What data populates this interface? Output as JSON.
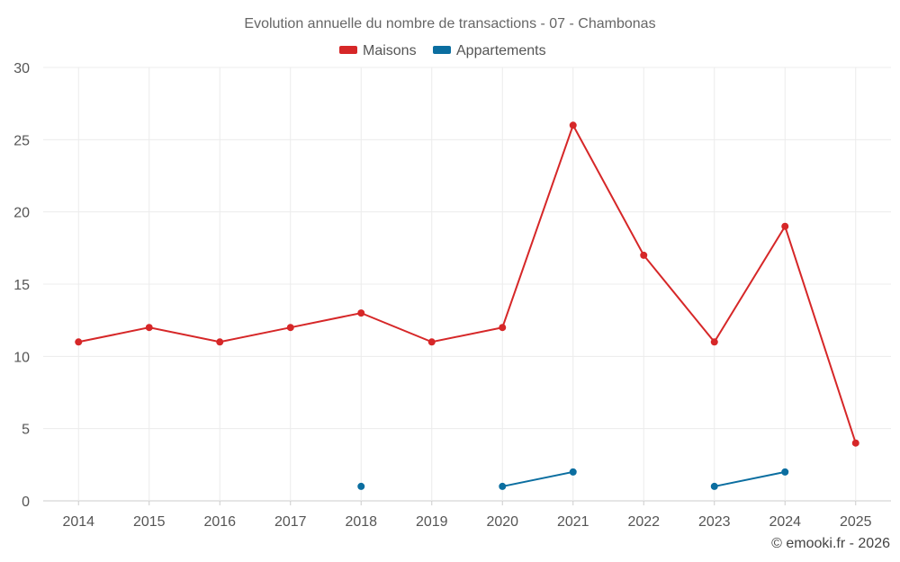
{
  "chart_data": {
    "type": "line",
    "title": "Evolution annuelle du nombre de transactions - 07 - Chambonas",
    "categories": [
      "2014",
      "2015",
      "2016",
      "2017",
      "2018",
      "2019",
      "2020",
      "2021",
      "2022",
      "2023",
      "2024",
      "2025"
    ],
    "ylim": [
      0,
      30
    ],
    "yticks": [
      0,
      5,
      10,
      15,
      20,
      25,
      30
    ],
    "grid": true,
    "legend_position": "top-center",
    "series": [
      {
        "name": "Maisons",
        "color": "#d62728",
        "values": [
          11,
          12,
          11,
          12,
          13,
          11,
          12,
          26,
          17,
          11,
          19,
          4
        ]
      },
      {
        "name": "Appartements",
        "color": "#0b6ea0",
        "values": [
          null,
          null,
          null,
          null,
          1,
          null,
          1,
          2,
          null,
          1,
          2,
          null
        ]
      }
    ]
  },
  "credit": "© emooki.fr - 2026"
}
